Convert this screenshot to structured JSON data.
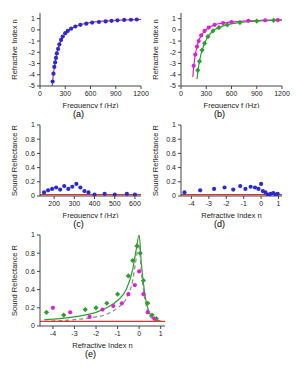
{
  "chart_data": [
    {
      "type": "scatter",
      "title": "(a)",
      "x_label": "Frequency  f (Hz)",
      "y_label": "Refractive Index  n",
      "xlim": [
        0,
        1200
      ],
      "xticks": [
        0,
        300,
        600,
        900,
        1200
      ],
      "ylim": [
        -5,
        1.5
      ],
      "yticks": [
        -5,
        -4,
        -3,
        -2,
        -1,
        0,
        1
      ],
      "series": [
        {
          "type": "scatter",
          "color": "#2b2bd0",
          "marker": "circle",
          "x": [
            150,
            160,
            170,
            180,
            190,
            200,
            215,
            230,
            250,
            270,
            300,
            330,
            370,
            420,
            480,
            550,
            620,
            700,
            780,
            850,
            920,
            1000,
            1080,
            1150
          ],
          "values": [
            -4.6,
            -3.9,
            -3.3,
            -2.9,
            -2.5,
            -2.1,
            -1.7,
            -1.3,
            -0.9,
            -0.6,
            -0.3,
            -0.1,
            0.1,
            0.3,
            0.45,
            0.55,
            0.65,
            0.7,
            0.75,
            0.8,
            0.85,
            0.88,
            0.9,
            0.92
          ]
        },
        {
          "type": "line",
          "color": "#d0306a",
          "line_style": "solid",
          "x": [
            145,
            160,
            180,
            200,
            230,
            260,
            300,
            350,
            420,
            500,
            600,
            750,
            900,
            1050,
            1200
          ],
          "values": [
            -5,
            -3.9,
            -2.9,
            -2.1,
            -1.35,
            -0.8,
            -0.35,
            0.0,
            0.3,
            0.5,
            0.65,
            0.78,
            0.85,
            0.89,
            0.92
          ]
        }
      ]
    },
    {
      "type": "scatter",
      "title": "(b)",
      "x_label": "Frequency  f (Hz)",
      "y_label": "Refractive Index  n",
      "xlim": [
        0,
        1200
      ],
      "xticks": [
        0,
        300,
        600,
        900,
        1200
      ],
      "ylim": [
        -5,
        1.5
      ],
      "yticks": [
        -5,
        -4,
        -3,
        -2,
        -1,
        0,
        1
      ],
      "series": [
        {
          "type": "scatter",
          "color": "#e020d0",
          "marker": "circle",
          "x": [
            150,
            170,
            190,
            210,
            240,
            280,
            330,
            400,
            500,
            600,
            800,
            1000,
            1150
          ],
          "values": [
            -3.2,
            -2.2,
            -1.5,
            -1.0,
            -0.5,
            -0.1,
            0.2,
            0.45,
            0.6,
            0.7,
            0.8,
            0.85,
            0.87
          ]
        },
        {
          "type": "line",
          "color": "#e020d0",
          "line_style": "solid",
          "x": [
            140,
            160,
            190,
            220,
            260,
            320,
            400,
            500,
            700,
            900,
            1200
          ],
          "values": [
            -4.2,
            -2.7,
            -1.5,
            -0.8,
            -0.3,
            0.15,
            0.45,
            0.6,
            0.76,
            0.83,
            0.88
          ]
        },
        {
          "type": "scatter",
          "color": "#2e9e2e",
          "marker": "diamond",
          "x": [
            200,
            220,
            250,
            280,
            320,
            380,
            450,
            550,
            700,
            900,
            1100
          ],
          "values": [
            -3.6,
            -2.8,
            -1.8,
            -1.2,
            -0.6,
            -0.1,
            0.2,
            0.45,
            0.65,
            0.78,
            0.85
          ]
        },
        {
          "type": "line",
          "color": "#2e9e2e",
          "line_style": "solid",
          "x": [
            190,
            210,
            240,
            280,
            330,
            400,
            500,
            650,
            850,
            1200
          ],
          "values": [
            -4.4,
            -3.2,
            -2.1,
            -1.2,
            -0.5,
            0.0,
            0.35,
            0.6,
            0.76,
            0.87
          ]
        }
      ]
    },
    {
      "type": "scatter",
      "title": "(c)",
      "x_label": "Frequency  f (Hz)",
      "y_label": "Sound Reflectance  R",
      "xlim": [
        130,
        630
      ],
      "xticks": [
        200,
        300,
        400,
        500,
        600
      ],
      "ylim": [
        0,
        1
      ],
      "yticks": [
        0,
        0.2,
        0.4,
        0.6,
        0.8,
        1
      ],
      "series": [
        {
          "type": "scatter",
          "color": "#2b2bd0",
          "marker": "circle",
          "x": [
            150,
            170,
            190,
            210,
            230,
            250,
            270,
            290,
            310,
            330,
            350,
            370,
            400,
            450,
            500,
            560,
            600
          ],
          "values": [
            0.05,
            0.08,
            0.1,
            0.12,
            0.09,
            0.14,
            0.1,
            0.13,
            0.17,
            0.12,
            0.07,
            0.05,
            0.02,
            0.03,
            0.02,
            0.03,
            0.02
          ]
        },
        {
          "type": "line",
          "color": "#e03030",
          "line_style": "solid",
          "x": [
            130,
            630
          ],
          "values": [
            0.02,
            0.02
          ]
        }
      ]
    },
    {
      "type": "scatter",
      "title": "(d)",
      "x_label": "Refractive Index  n",
      "y_label": "Sound Reflectance  R",
      "xlim": [
        -4.6,
        1.2
      ],
      "xticks": [
        -4,
        -3,
        -2,
        -1,
        0,
        1
      ],
      "ylim": [
        0,
        1
      ],
      "yticks": [
        0,
        0.2,
        0.4,
        0.6,
        0.8,
        1
      ],
      "series": [
        {
          "type": "scatter",
          "color": "#2b2bd0",
          "marker": "circle",
          "x": [
            -4.4,
            -3.5,
            -2.7,
            -2.1,
            -1.6,
            -1.2,
            -0.9,
            -0.6,
            -0.35,
            -0.15,
            0.0,
            0.1,
            0.25,
            0.4,
            0.55,
            0.7,
            0.85,
            0.95
          ],
          "values": [
            0.05,
            0.08,
            0.1,
            0.12,
            0.09,
            0.14,
            0.1,
            0.13,
            0.12,
            0.1,
            0.17,
            0.07,
            0.05,
            0.02,
            0.03,
            0.04,
            0.02,
            0.03
          ]
        },
        {
          "type": "line",
          "color": "#e03030",
          "line_style": "solid",
          "x": [
            -4.6,
            1.2
          ],
          "values": [
            0.02,
            0.02
          ]
        }
      ]
    },
    {
      "type": "scatter",
      "title": "(e)",
      "x_label": "Refractive Index  n",
      "y_label": "Sound Reflectance  R",
      "xlim": [
        -4.6,
        1.2
      ],
      "xticks": [
        -4,
        -3,
        -2,
        -1,
        0,
        1
      ],
      "ylim": [
        0,
        1
      ],
      "yticks": [
        0,
        0.2,
        0.4,
        0.6,
        0.8,
        1
      ],
      "series": [
        {
          "type": "line",
          "color": "#2e9e2e",
          "line_style": "solid",
          "x": [
            -4.4,
            -3,
            -2,
            -1.5,
            -1,
            -0.6,
            -0.3,
            -0.15,
            0,
            0.1,
            0.3,
            0.6,
            1
          ],
          "values": [
            0.07,
            0.1,
            0.15,
            0.2,
            0.28,
            0.4,
            0.62,
            0.82,
            1.0,
            0.7,
            0.3,
            0.1,
            0.05
          ]
        },
        {
          "type": "line",
          "color": "#888888",
          "line_style": "dashed",
          "x": [
            -4.4,
            -3,
            -2,
            -1.5,
            -1,
            -0.6,
            -0.3,
            -0.15,
            0,
            0.1,
            0.3,
            0.6,
            1
          ],
          "values": [
            0.05,
            0.07,
            0.1,
            0.13,
            0.2,
            0.3,
            0.5,
            0.72,
            0.9,
            0.6,
            0.25,
            0.08,
            0.04
          ]
        },
        {
          "type": "line",
          "color": "#e03030",
          "line_style": "solid",
          "x": [
            -4.6,
            1.2
          ],
          "values": [
            0.05,
            0.05
          ]
        },
        {
          "type": "scatter",
          "color": "#2e9e2e",
          "marker": "diamond",
          "x": [
            -4.3,
            -3.5,
            -2.5,
            -2,
            -1.5,
            -1,
            -0.5,
            -0.3,
            -0.1,
            0.05,
            0.2,
            0.4,
            0.6,
            0.8
          ],
          "values": [
            0.15,
            0.12,
            0.18,
            0.2,
            0.25,
            0.35,
            0.55,
            0.72,
            0.88,
            0.8,
            0.5,
            0.25,
            0.12,
            0.08
          ]
        },
        {
          "type": "scatter",
          "color": "#e020d0",
          "marker": "circle",
          "x": [
            -4,
            -3.2,
            -2.3,
            -1.7,
            -1.2,
            -0.8,
            -0.5,
            -0.2,
            0,
            0.2,
            0.4,
            0.7
          ],
          "values": [
            0.2,
            0.15,
            0.1,
            0.18,
            0.22,
            0.25,
            0.35,
            0.45,
            0.6,
            0.35,
            0.15,
            0.08
          ]
        }
      ]
    }
  ]
}
